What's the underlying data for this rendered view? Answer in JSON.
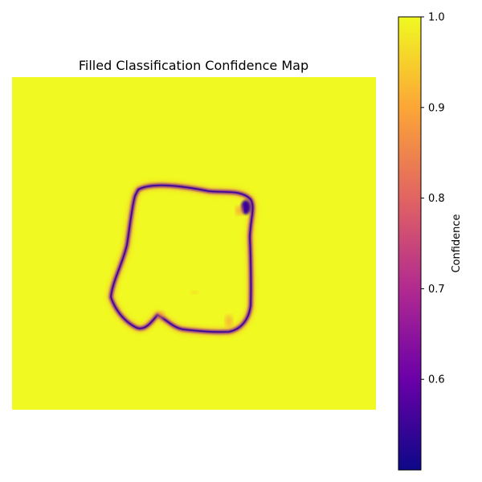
{
  "chart_data": {
    "type": "heatmap",
    "title": "Filled Classification Confidence Map",
    "colormap": "plasma",
    "background_value": 1.0,
    "colorbar": {
      "label": "Confidence",
      "range": [
        0.5,
        1.0
      ],
      "ticks": [
        0.6,
        0.7,
        0.8,
        0.9,
        1.0
      ],
      "tick_labels": [
        "0.6",
        "0.7",
        "0.8",
        "0.9",
        "1.0"
      ],
      "colors": [
        "#0d0887",
        "#6a00a8",
        "#b12a90",
        "#e16462",
        "#fca636",
        "#f0f921"
      ]
    },
    "axes": {
      "visible": false
    },
    "boundary_region": {
      "description_value_min": 0.5,
      "note": "low-confidence outline ring around central region"
    }
  }
}
